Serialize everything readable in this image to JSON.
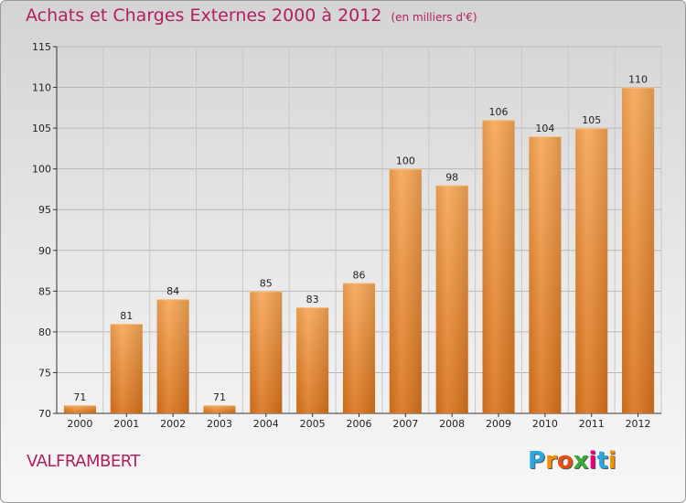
{
  "header": {
    "title": "Achats et Charges Externes 2000 à 2012",
    "unit": "(en milliers d'€)"
  },
  "footer": {
    "place": "VALFRAMBERT",
    "logo_letters": [
      "P",
      "r",
      "o",
      "x",
      "i",
      "t",
      "i"
    ],
    "logo_colors": [
      "#2aa7e0",
      "#f39200",
      "#e84e0f",
      "#3aa935",
      "#e6007e",
      "#2aa7e0",
      "#f39200"
    ]
  },
  "chart_data": {
    "type": "bar",
    "title": "Achats et Charges Externes 2000 à 2012",
    "subtitle": "(en milliers d'€)",
    "categories": [
      "2000",
      "2001",
      "2002",
      "2003",
      "2004",
      "2005",
      "2006",
      "2007",
      "2008",
      "2009",
      "2010",
      "2011",
      "2012"
    ],
    "values": [
      71,
      81,
      84,
      71,
      85,
      83,
      86,
      100,
      98,
      106,
      104,
      105,
      110
    ],
    "ylim": [
      70,
      115
    ],
    "yticks": [
      70,
      75,
      80,
      85,
      90,
      95,
      100,
      105,
      110,
      115
    ],
    "grid": true,
    "bar_color_top": "#f7a655",
    "bar_color_bottom": "#d9731c"
  }
}
